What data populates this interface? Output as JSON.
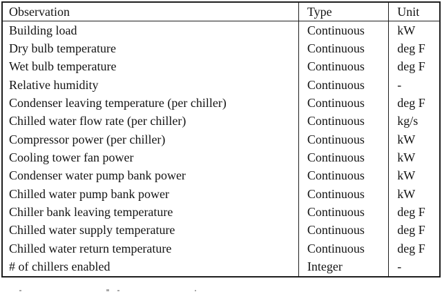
{
  "table": {
    "headers": {
      "observation": "Observation",
      "type": "Type",
      "unit": "Unit"
    },
    "rows": [
      {
        "observation": "Building load",
        "type": "Continuous",
        "unit": "kW"
      },
      {
        "observation": "Dry bulb temperature",
        "type": "Continuous",
        "unit": "deg F"
      },
      {
        "observation": "Wet bulb temperature",
        "type": "Continuous",
        "unit": "deg F"
      },
      {
        "observation": "Relative humidity",
        "type": "Continuous",
        "unit": "-"
      },
      {
        "observation": "Condenser leaving temperature (per chiller)",
        "type": "Continuous",
        "unit": "deg F"
      },
      {
        "observation": "Chilled water flow rate (per chiller)",
        "type": "Continuous",
        "unit": "kg/s"
      },
      {
        "observation": "Compressor power (per chiller)",
        "type": "Continuous",
        "unit": "kW"
      },
      {
        "observation": "Cooling tower fan power",
        "type": "Continuous",
        "unit": "kW"
      },
      {
        "observation": "Condenser water pump bank power",
        "type": "Continuous",
        "unit": "kW"
      },
      {
        "observation": "Chilled water pump bank power",
        "type": "Continuous",
        "unit": "kW"
      },
      {
        "observation": "Chiller bank leaving temperature",
        "type": "Continuous",
        "unit": "deg F"
      },
      {
        "observation": "Chilled water supply temperature",
        "type": "Continuous",
        "unit": "deg F"
      },
      {
        "observation": "Chilled water return temperature",
        "type": "Continuous",
        "unit": "deg F"
      },
      {
        "observation": "# of chillers enabled",
        "type": "Integer",
        "unit": "-"
      }
    ]
  },
  "colors": {
    "text": "#131313",
    "border": "#1c1c1c",
    "background": "#ffffff",
    "caption_fragment": "#a8a8a8"
  }
}
